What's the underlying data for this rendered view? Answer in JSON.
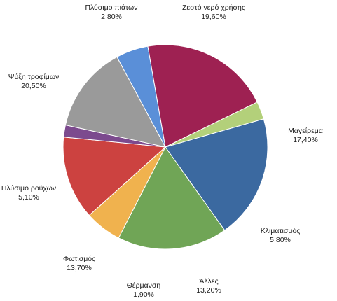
{
  "chart_data": {
    "type": "pie",
    "title": "",
    "slices": [
      {
        "label": "Ζεστό νερό χρήσης",
        "value": 19.6,
        "value_label": "19,60%",
        "color": "#3b69a0"
      },
      {
        "label": "Μαγείρεμα",
        "value": 17.4,
        "value_label": "17,40%",
        "color": "#70a556"
      },
      {
        "label": "Κλιματισμός",
        "value": 5.8,
        "value_label": "5,80%",
        "color": "#f0b24e"
      },
      {
        "label": "Άλλες",
        "value": 13.2,
        "value_label": "13,20%",
        "color": "#cc4240"
      },
      {
        "label": "Θέρμανση",
        "value": 1.9,
        "value_label": "1,90%",
        "color": "#7c4a8e"
      },
      {
        "label": "Φωτισμός",
        "value": 13.7,
        "value_label": "13,70%",
        "color": "#9a9a9a"
      },
      {
        "label": "Πλύσιμο ρούχων",
        "value": 5.1,
        "value_label": "5,10%",
        "color": "#5a8fd8"
      },
      {
        "label": "Ψύξη τροφίμων",
        "value": 20.5,
        "value_label": "20,50%",
        "color": "#9e2152"
      },
      {
        "label": "Πλύσιμο πιάτων",
        "value": 2.8,
        "value_label": "2,80%",
        "color": "#b3d07a"
      }
    ],
    "start_angle_deg": -16,
    "direction": "clockwise",
    "legend": "none"
  }
}
